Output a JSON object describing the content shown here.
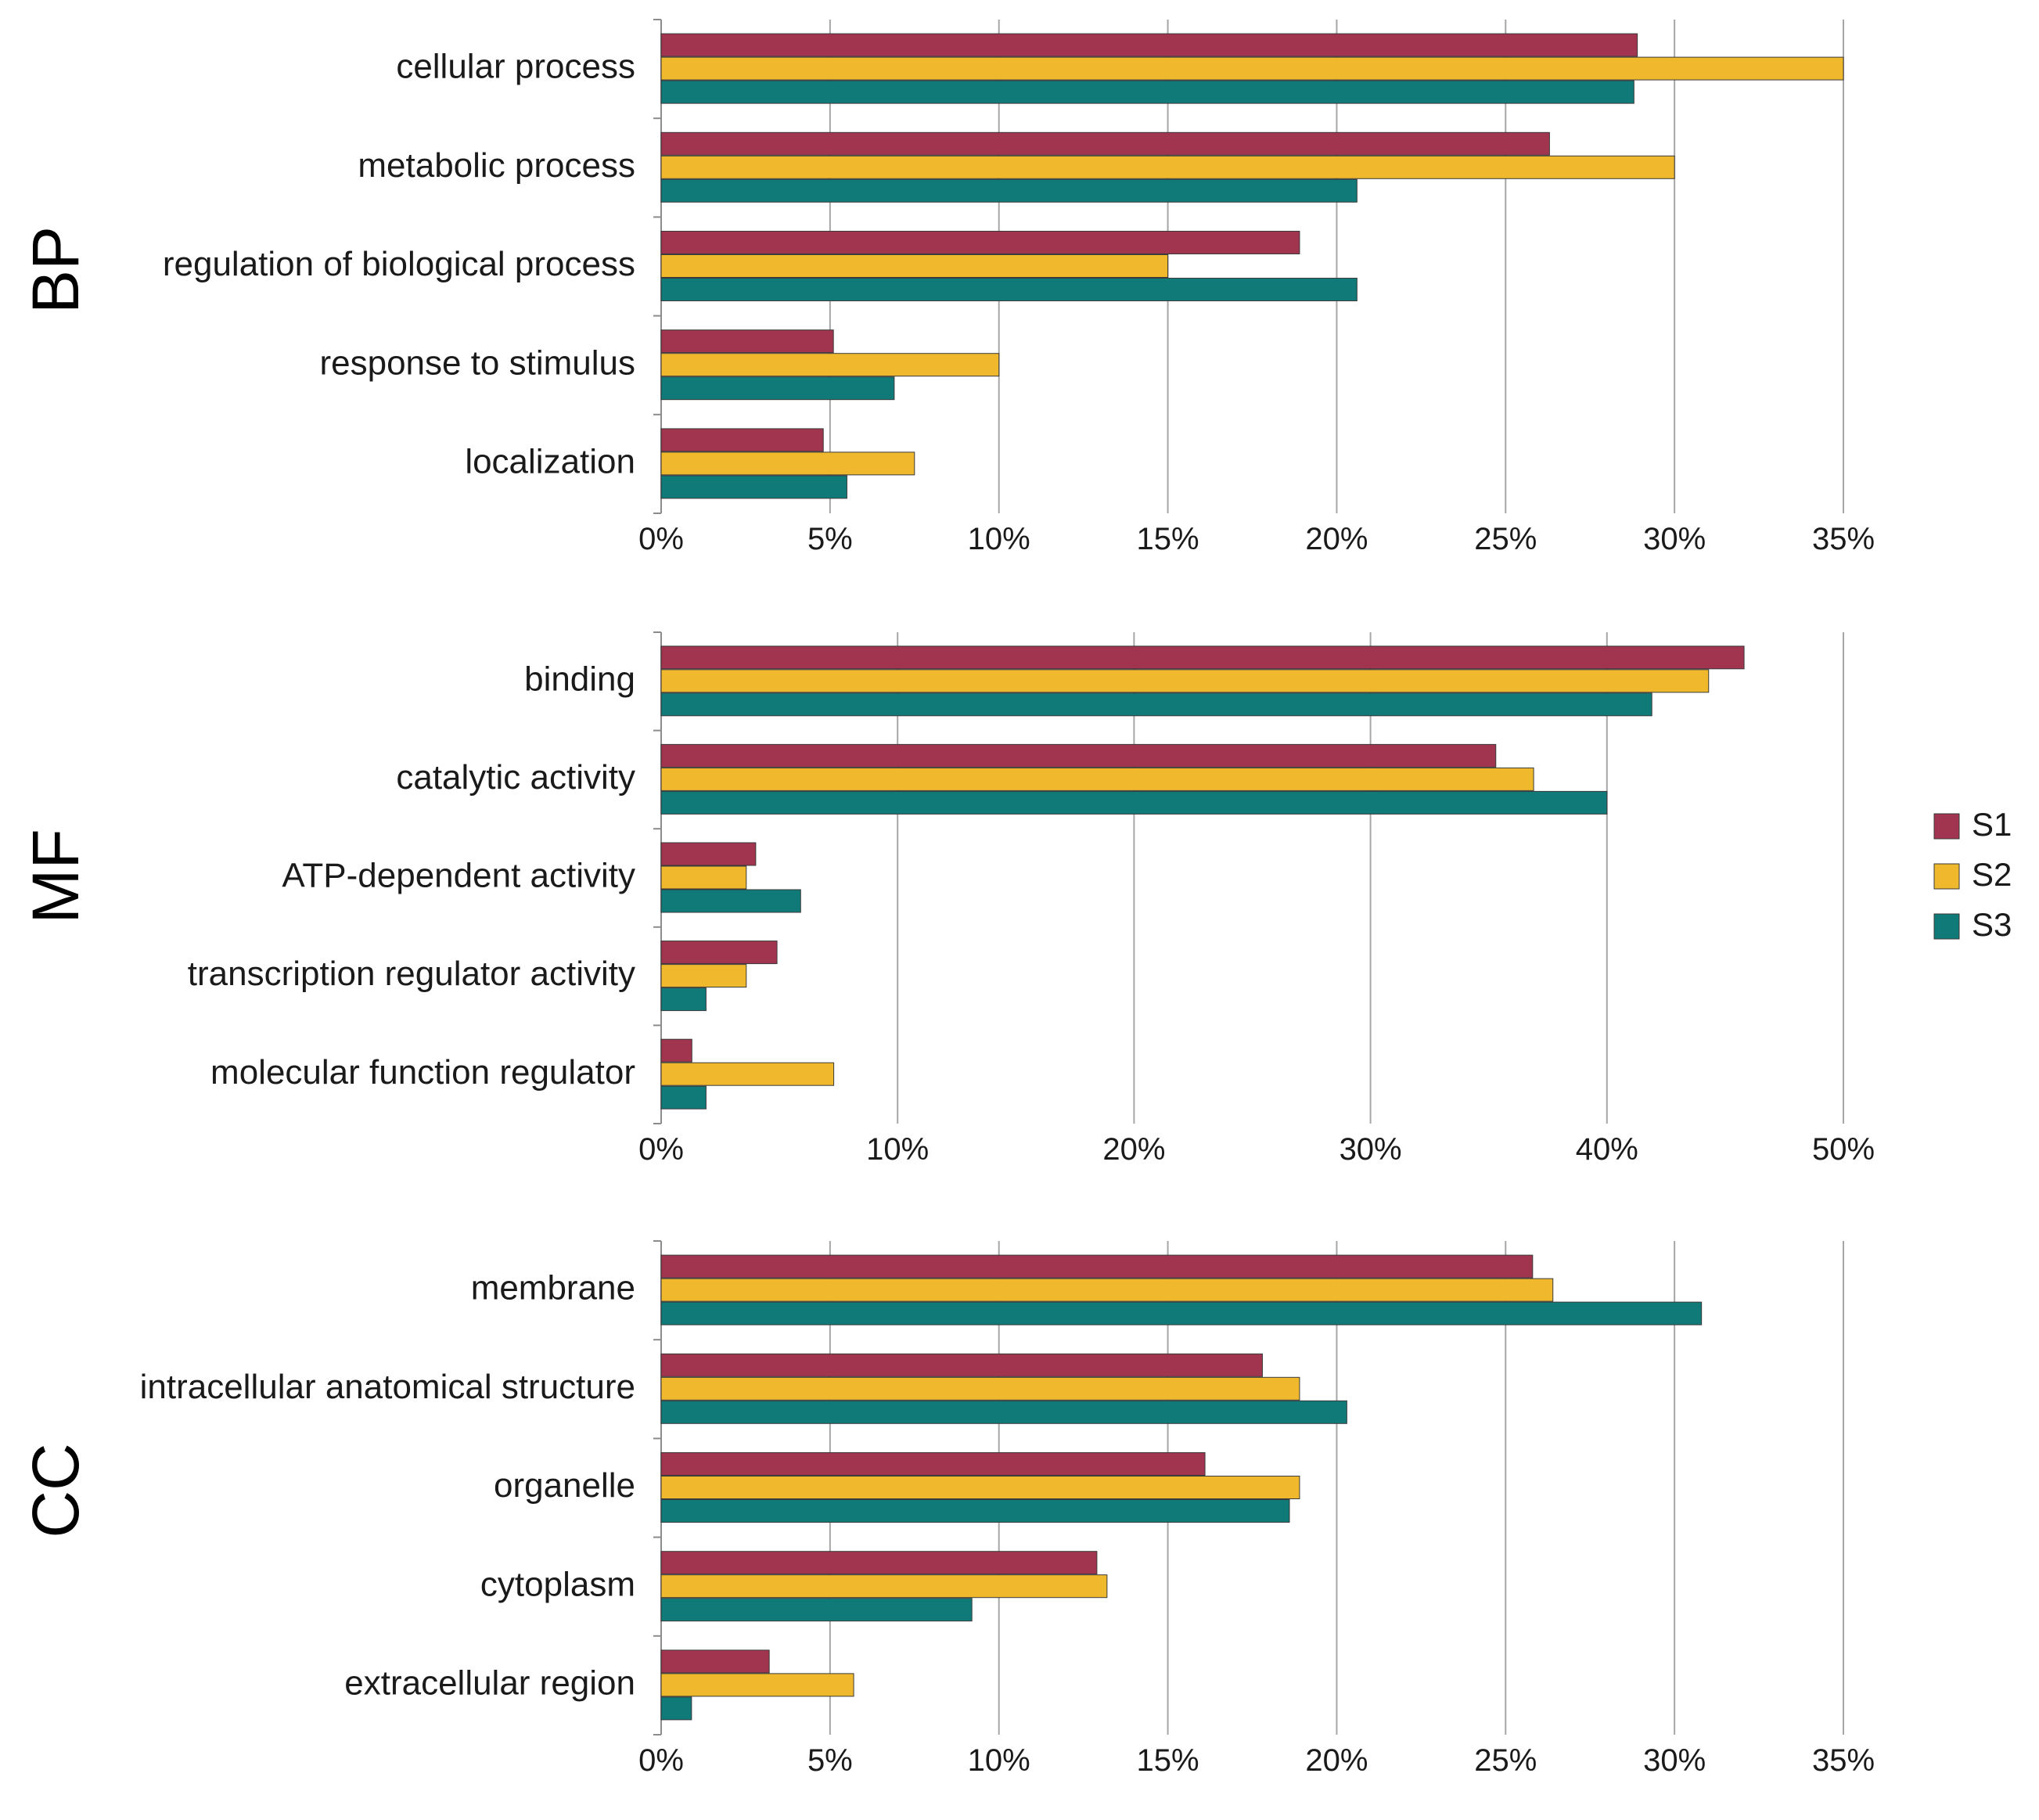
{
  "chart_data": [
    {
      "type": "bar",
      "orientation": "horizontal",
      "section": "BP",
      "categories": [
        "cellular process",
        "metabolic process",
        "regulation of biological process",
        "response to stimulus",
        "localization"
      ],
      "series": [
        {
          "name": "S1",
          "values": [
            28.9,
            26.3,
            18.9,
            5.1,
            4.8
          ]
        },
        {
          "name": "S2",
          "values": [
            35.0,
            30.0,
            15.0,
            10.0,
            7.5
          ]
        },
        {
          "name": "S3",
          "values": [
            28.8,
            20.6,
            20.6,
            6.9,
            5.5
          ]
        }
      ],
      "xlim": [
        0,
        35
      ],
      "ticks": [
        0,
        5,
        10,
        15,
        20,
        25,
        30,
        35
      ],
      "tick_labels": [
        "0%",
        "5%",
        "10%",
        "15%",
        "20%",
        "25%",
        "30%",
        "35%"
      ],
      "grid": true
    },
    {
      "type": "bar",
      "orientation": "horizontal",
      "section": "MF",
      "categories": [
        "binding",
        "catalytic activity",
        "ATP-dependent activity",
        "transcription regulator activity",
        "molecular function regulator"
      ],
      "series": [
        {
          "name": "S1",
          "values": [
            45.8,
            35.3,
            4.0,
            4.9,
            1.3
          ]
        },
        {
          "name": "S2",
          "values": [
            44.3,
            36.9,
            3.6,
            3.6,
            7.3
          ]
        },
        {
          "name": "S3",
          "values": [
            41.9,
            40.0,
            5.9,
            1.9,
            1.9
          ]
        }
      ],
      "xlim": [
        0,
        50
      ],
      "ticks": [
        0,
        10,
        20,
        30,
        40,
        50
      ],
      "tick_labels": [
        "0%",
        "10%",
        "20%",
        "30%",
        "40%",
        "50%"
      ],
      "grid": true
    },
    {
      "type": "bar",
      "orientation": "horizontal",
      "section": "CC",
      "categories": [
        "membrane",
        "intracellular anatomical structure",
        "organelle",
        "cytoplasm",
        "extracellular region"
      ],
      "series": [
        {
          "name": "S1",
          "values": [
            25.8,
            17.8,
            16.1,
            12.9,
            3.2
          ]
        },
        {
          "name": "S2",
          "values": [
            26.4,
            18.9,
            18.9,
            13.2,
            5.7
          ]
        },
        {
          "name": "S3",
          "values": [
            30.8,
            20.3,
            18.6,
            9.2,
            0.9
          ]
        }
      ],
      "xlim": [
        0,
        35
      ],
      "ticks": [
        0,
        5,
        10,
        15,
        20,
        25,
        30,
        35
      ],
      "tick_labels": [
        "0%",
        "5%",
        "10%",
        "15%",
        "20%",
        "25%",
        "30%",
        "35%"
      ],
      "grid": true
    }
  ],
  "legend": {
    "placement": "right",
    "entries": [
      {
        "name": "S1",
        "color": "#a1344f"
      },
      {
        "name": "S2",
        "color": "#f0b82c"
      },
      {
        "name": "S3",
        "color": "#107a78"
      }
    ]
  },
  "colors": {
    "S1": "#a1344f",
    "S2": "#f0b82c",
    "S3": "#107a78",
    "grid": "#a6a6a6"
  }
}
